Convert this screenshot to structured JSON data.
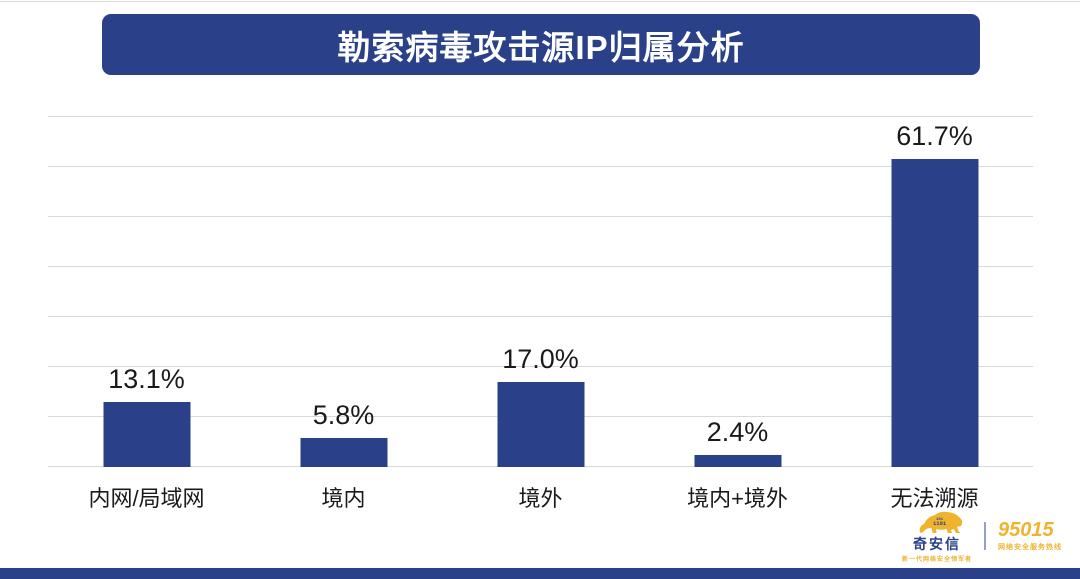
{
  "header": {
    "title": "勒索病毒攻击源IP归属分析"
  },
  "chart_data": {
    "type": "bar",
    "title": "勒索病毒攻击源IP归属分析",
    "categories": [
      "内网/局域网",
      "境内",
      "境外",
      "境内+境外",
      "无法溯源"
    ],
    "values": [
      13.1,
      5.8,
      17.0,
      2.4,
      61.7
    ],
    "value_labels": [
      "13.1%",
      "5.8%",
      "17.0%",
      "2.4%",
      "61.7%"
    ],
    "xlabel": "",
    "ylabel": "",
    "ylim": [
      0,
      70
    ],
    "gridline_step": 10,
    "grid": true,
    "legend": "none",
    "bar_color": "#2a4189"
  },
  "footer": {
    "brand_name": "奇安信",
    "brand_tagline": "新一代网络安全领军者",
    "hotline_number": "95015",
    "hotline_label": "网络安全服务热线"
  },
  "colors": {
    "accent_navy": "#2a4189",
    "gold": "#f0b32e",
    "gridline": "#d9d9d9",
    "text": "#1a1a1a"
  }
}
